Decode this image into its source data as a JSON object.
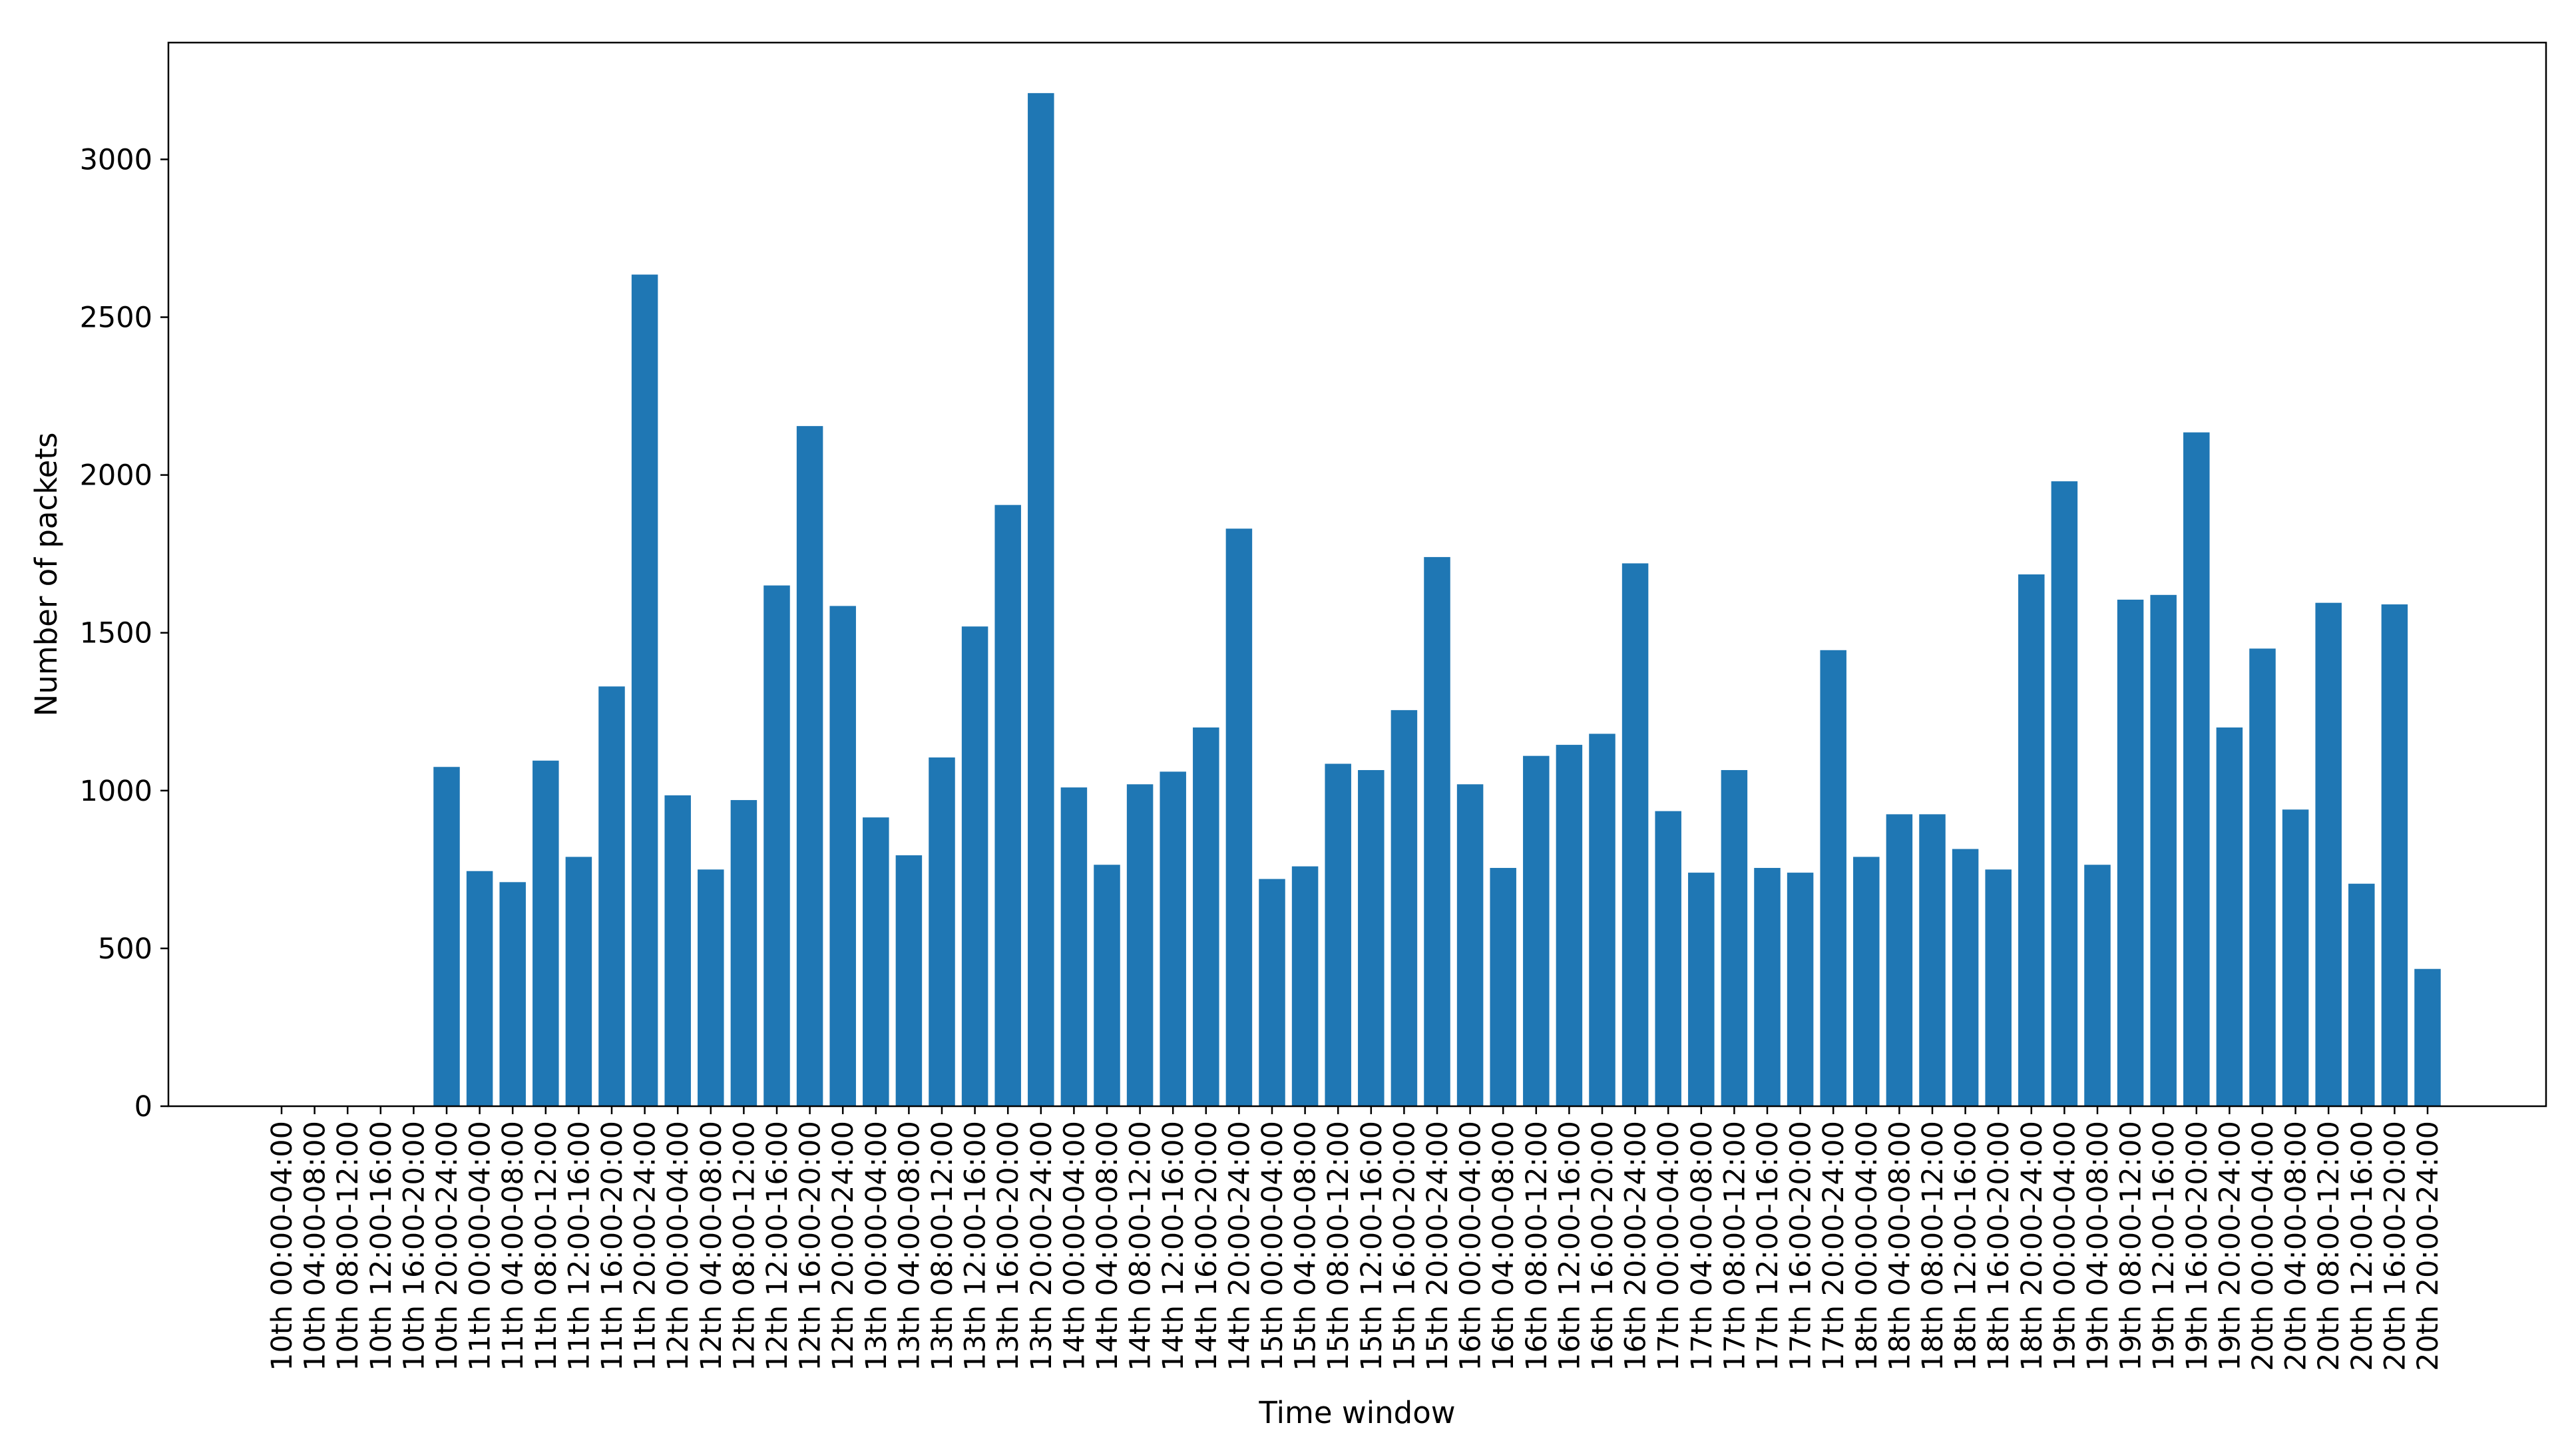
{
  "chart_data": {
    "type": "bar",
    "xlabel": "Time window",
    "ylabel": "Number of packets",
    "ylim": [
      0,
      3370
    ],
    "yticks": [
      0,
      500,
      1000,
      1500,
      2000,
      2500,
      3000
    ],
    "grid": false,
    "bar_color": "#1f77b4",
    "categories": [
      "10th 00:00-04:00",
      "10th 04:00-08:00",
      "10th 08:00-12:00",
      "10th 12:00-16:00",
      "10th 16:00-20:00",
      "10th 20:00-24:00",
      "11th 00:00-04:00",
      "11th 04:00-08:00",
      "11th 08:00-12:00",
      "11th 12:00-16:00",
      "11th 16:00-20:00",
      "11th 20:00-24:00",
      "12th 00:00-04:00",
      "12th 04:00-08:00",
      "12th 08:00-12:00",
      "12th 12:00-16:00",
      "12th 16:00-20:00",
      "12th 20:00-24:00",
      "13th 00:00-04:00",
      "13th 04:00-08:00",
      "13th 08:00-12:00",
      "13th 12:00-16:00",
      "13th 16:00-20:00",
      "13th 20:00-24:00",
      "14th 00:00-04:00",
      "14th 04:00-08:00",
      "14th 08:00-12:00",
      "14th 12:00-16:00",
      "14th 16:00-20:00",
      "14th 20:00-24:00",
      "15th 00:00-04:00",
      "15th 04:00-08:00",
      "15th 08:00-12:00",
      "15th 12:00-16:00",
      "15th 16:00-20:00",
      "15th 20:00-24:00",
      "16th 00:00-04:00",
      "16th 04:00-08:00",
      "16th 08:00-12:00",
      "16th 12:00-16:00",
      "16th 16:00-20:00",
      "16th 20:00-24:00",
      "17th 00:00-04:00",
      "17th 04:00-08:00",
      "17th 08:00-12:00",
      "17th 12:00-16:00",
      "17th 16:00-20:00",
      "17th 20:00-24:00",
      "18th 00:00-04:00",
      "18th 04:00-08:00",
      "18th 08:00-12:00",
      "18th 12:00-16:00",
      "18th 16:00-20:00",
      "18th 20:00-24:00",
      "19th 00:00-04:00",
      "19th 04:00-08:00",
      "19th 08:00-12:00",
      "19th 12:00-16:00",
      "19th 16:00-20:00",
      "19th 20:00-24:00",
      "20th 00:00-04:00",
      "20th 04:00-08:00",
      "20th 08:00-12:00",
      "20th 12:00-16:00",
      "20th 16:00-20:00",
      "20th 20:00-24:00"
    ],
    "values": [
      0,
      0,
      0,
      0,
      0,
      1075,
      745,
      710,
      1095,
      790,
      1330,
      2635,
      985,
      750,
      970,
      1650,
      2155,
      1585,
      915,
      795,
      1105,
      1520,
      1905,
      3210,
      1010,
      765,
      1020,
      1060,
      1200,
      1830,
      720,
      760,
      1085,
      1065,
      1255,
      1740,
      1020,
      755,
      1110,
      1145,
      1180,
      1720,
      935,
      740,
      1065,
      755,
      740,
      1445,
      790,
      925,
      925,
      815,
      750,
      1685,
      1980,
      765,
      1605,
      1620,
      2135,
      1200,
      1450,
      940,
      1595,
      705,
      1590,
      435
    ]
  }
}
